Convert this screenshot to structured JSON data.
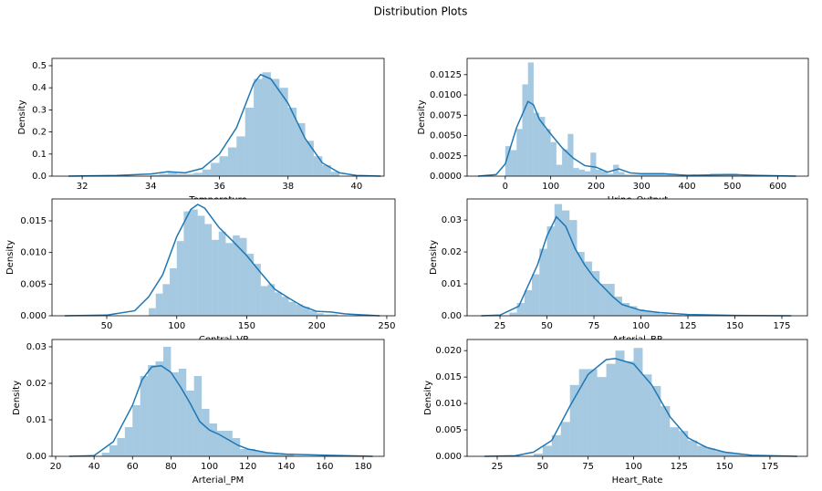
{
  "title": "Distribution Plots",
  "chart_data": [
    {
      "type": "histogram",
      "xlabel": "Temperature",
      "ylabel": "Density",
      "color": "#1f77b4",
      "bar_alpha": 0.4,
      "xlim": [
        31.12,
        40.8
      ],
      "ylim": [
        0,
        0.533
      ],
      "xticks": [
        32,
        34,
        36,
        38,
        40
      ],
      "yticks": [
        {
          "value": 0,
          "label": "0.0"
        },
        0.1,
        0.2,
        0.3,
        0.4,
        0.5
      ],
      "bins": [
        34,
        34.25,
        34.5,
        34.75,
        35,
        35.25,
        35.5,
        35.75,
        36,
        36.25,
        36.5,
        36.75,
        37,
        37.25,
        37.5,
        37.75,
        38,
        38.25,
        38.5,
        38.75,
        39,
        39.25,
        39.5
      ],
      "values": [
        0.005,
        0.01,
        0.015,
        0.01,
        0.01,
        0.015,
        0.03,
        0.06,
        0.09,
        0.13,
        0.18,
        0.31,
        0.44,
        0.47,
        0.44,
        0.4,
        0.31,
        0.24,
        0.16,
        0.09,
        0.05,
        0.02
      ],
      "kde": {
        "x": [
          31.6,
          32,
          33,
          34,
          34.5,
          35,
          35.5,
          36,
          36.5,
          37,
          37.2,
          37.5,
          38,
          38.5,
          39,
          39.5,
          40,
          40.7
        ],
        "y": [
          0,
          0.001,
          0.003,
          0.01,
          0.02,
          0.015,
          0.035,
          0.1,
          0.22,
          0.42,
          0.46,
          0.44,
          0.33,
          0.17,
          0.06,
          0.015,
          0.003,
          0
        ]
      }
    },
    {
      "type": "histogram",
      "xlabel": "Urine_Output",
      "ylabel": "Density",
      "color": "#1f77b4",
      "bar_alpha": 0.4,
      "xlim": [
        -84,
        667
      ],
      "ylim": [
        0,
        0.0145
      ],
      "xticks": [
        0,
        100,
        200,
        300,
        400,
        500,
        600
      ],
      "yticks": [
        {
          "value": 0,
          "label": "0.0000"
        },
        0.0025,
        {
          "value": 0.005,
          "label": "0.0050"
        },
        0.0075,
        {
          "value": 0.01,
          "label": "0.0100"
        },
        0.0125
      ],
      "bins": [
        0,
        12.5,
        25,
        37.5,
        50,
        62.5,
        75,
        87.5,
        100,
        112.5,
        125,
        137.5,
        150,
        162.5,
        175,
        187.5,
        200,
        212.5,
        225,
        237.5,
        250,
        262.5,
        300,
        350,
        400,
        450,
        512.5
      ],
      "values": [
        0.0037,
        0.0032,
        0.0058,
        0.0113,
        0.014,
        0.0078,
        0.0073,
        0.0058,
        0.0042,
        0.0014,
        0.0033,
        0.0052,
        0.001,
        0.0008,
        0.0006,
        0.0029,
        0.0008,
        0.0006,
        0.0003,
        0.0014,
        0.0005,
        0.0002,
        0.0004,
        0.0002,
        0.0001,
        0.0003
      ],
      "kde": {
        "x": [
          -60,
          -20,
          0,
          25,
          50,
          62,
          75,
          100,
          125,
          150,
          175,
          200,
          225,
          250,
          275,
          300,
          350,
          400,
          500,
          550,
          640
        ],
        "y": [
          0,
          0.0002,
          0.0015,
          0.006,
          0.0092,
          0.0088,
          0.007,
          0.0052,
          0.0035,
          0.0022,
          0.0013,
          0.0011,
          0.0005,
          0.0009,
          0.0004,
          0.0003,
          0.0003,
          0.0001,
          0.0002,
          0.0001,
          0
        ]
      }
    },
    {
      "type": "histogram",
      "xlabel": "Central_VP",
      "ylabel": "Density",
      "color": "#1f77b4",
      "bar_alpha": 0.4,
      "xlim": [
        10.9,
        255.9
      ],
      "ylim": [
        0,
        0.01846
      ],
      "xticks": [
        50,
        100,
        150,
        200,
        250
      ],
      "yticks": [
        {
          "value": 0,
          "label": "0.000"
        },
        0.005,
        {
          "value": 0.01,
          "label": "0.010"
        },
        0.015
      ],
      "bins": [
        80,
        85,
        90,
        95,
        100,
        105,
        110,
        115,
        120,
        125,
        130,
        135,
        140,
        145,
        150,
        155,
        160,
        165,
        170,
        175,
        180,
        185,
        190,
        195,
        200,
        205,
        210,
        215
      ],
      "values": [
        0.0012,
        0.0035,
        0.005,
        0.0075,
        0.0118,
        0.0165,
        0.0168,
        0.0158,
        0.0145,
        0.012,
        0.0133,
        0.0115,
        0.0127,
        0.0123,
        0.0098,
        0.0082,
        0.0047,
        0.005,
        0.0037,
        0.003,
        0.0022,
        0.0018,
        0.0014,
        0.0008,
        0.0004,
        0.0002,
        0.0002
      ],
      "kde": {
        "x": [
          20,
          50,
          70,
          80,
          90,
          100,
          110,
          115,
          120,
          130,
          140,
          150,
          160,
          170,
          180,
          190,
          200,
          210,
          220,
          245
        ],
        "y": [
          0,
          0.0001,
          0.0008,
          0.003,
          0.0065,
          0.0125,
          0.0168,
          0.0176,
          0.017,
          0.014,
          0.0118,
          0.0095,
          0.0068,
          0.0042,
          0.0028,
          0.0015,
          0.0007,
          0.0006,
          0.0003,
          0
        ]
      }
    },
    {
      "type": "histogram",
      "xlabel": "Arterial_BP",
      "ylabel": "Density",
      "color": "#1f77b4",
      "bar_alpha": 0.4,
      "xlim": [
        7.5,
        188.6
      ],
      "ylim": [
        0,
        0.0366
      ],
      "xticks": [
        25,
        50,
        75,
        100,
        125,
        150,
        175
      ],
      "yticks": [
        {
          "value": 0,
          "label": "0.00"
        },
        0.01,
        0.02,
        0.03
      ],
      "bins": [
        30,
        34,
        38,
        42,
        46,
        50,
        54,
        58,
        62,
        66,
        70,
        74,
        78,
        82,
        86,
        90,
        94,
        98,
        102,
        106,
        110,
        114,
        118,
        122,
        126
      ],
      "values": [
        0.001,
        0.004,
        0.008,
        0.013,
        0.021,
        0.028,
        0.035,
        0.033,
        0.03,
        0.02,
        0.017,
        0.014,
        0.01,
        0.01,
        0.006,
        0.004,
        0.003,
        0.002,
        0.0015,
        0.001,
        0.0006,
        0.0004,
        0.0003,
        0.0002
      ],
      "kde": {
        "x": [
          15,
          25,
          35,
          45,
          50,
          55,
          60,
          65,
          70,
          75,
          80,
          85,
          90,
          100,
          110,
          125,
          150,
          180
        ],
        "y": [
          0,
          0.0002,
          0.003,
          0.016,
          0.025,
          0.031,
          0.028,
          0.021,
          0.016,
          0.012,
          0.009,
          0.006,
          0.0035,
          0.0017,
          0.001,
          0.0004,
          0.0001,
          0
        ]
      }
    },
    {
      "type": "histogram",
      "xlabel": "Arterial_PM",
      "ylabel": "Density",
      "color": "#1f77b4",
      "bar_alpha": 0.4,
      "xlim": [
        18.1,
        190.9
      ],
      "ylim": [
        0,
        0.032
      ],
      "xticks": [
        20,
        40,
        60,
        80,
        100,
        120,
        140,
        160,
        180
      ],
      "yticks": [
        {
          "value": 0,
          "label": "0.00"
        },
        0.01,
        0.02,
        0.03
      ],
      "bins": [
        44,
        48,
        52,
        56,
        60,
        64,
        68,
        72,
        76,
        80,
        84,
        88,
        92,
        96,
        100,
        104,
        108,
        112,
        116,
        120,
        124,
        128,
        132,
        136,
        140,
        144
      ],
      "values": [
        0.001,
        0.003,
        0.005,
        0.008,
        0.014,
        0.022,
        0.025,
        0.026,
        0.03,
        0.023,
        0.024,
        0.018,
        0.022,
        0.013,
        0.009,
        0.007,
        0.007,
        0.005,
        0.002,
        0.002,
        0.0015,
        0.001,
        0.0007,
        0.0005,
        0.0004
      ],
      "kde": {
        "x": [
          27,
          40,
          50,
          60,
          65,
          70,
          75,
          80,
          85,
          90,
          95,
          100,
          105,
          110,
          115,
          120,
          130,
          140,
          160,
          185
        ],
        "y": [
          0,
          0.0002,
          0.004,
          0.014,
          0.021,
          0.0245,
          0.0248,
          0.023,
          0.019,
          0.0145,
          0.0095,
          0.0072,
          0.006,
          0.0045,
          0.003,
          0.002,
          0.001,
          0.0006,
          0.0003,
          0
        ]
      }
    },
    {
      "type": "histogram",
      "xlabel": "Heart_Rate",
      "ylabel": "Density",
      "color": "#1f77b4",
      "bar_alpha": 0.4,
      "xlim": [
        8.45,
        195.6
      ],
      "ylim": [
        0,
        0.0221
      ],
      "xticks": [
        25,
        50,
        75,
        100,
        125,
        150,
        175
      ],
      "yticks": [
        {
          "value": 0,
          "label": "0.000"
        },
        0.005,
        {
          "value": 0.01,
          "label": "0.010"
        },
        0.015,
        {
          "value": 0.02,
          "label": "0.020"
        }
      ],
      "bins": [
        45,
        50,
        55,
        60,
        65,
        70,
        75,
        80,
        85,
        90,
        95,
        100,
        105,
        110,
        115,
        120,
        125,
        130,
        135,
        140,
        145,
        150,
        155,
        160,
        165
      ],
      "values": [
        0.0005,
        0.002,
        0.004,
        0.0065,
        0.0135,
        0.0165,
        0.0165,
        0.015,
        0.0175,
        0.02,
        0.018,
        0.0205,
        0.0155,
        0.0133,
        0.0095,
        0.0055,
        0.0048,
        0.003,
        0.002,
        0.0015,
        0.001,
        0.0007,
        0.0004,
        0.0002
      ],
      "kde": {
        "x": [
          18,
          35,
          45,
          55,
          65,
          75,
          85,
          90,
          100,
          110,
          120,
          130,
          140,
          150,
          165,
          190
        ],
        "y": [
          0,
          0.0001,
          0.0008,
          0.003,
          0.0095,
          0.0155,
          0.0183,
          0.0185,
          0.0175,
          0.0135,
          0.0075,
          0.0035,
          0.0017,
          0.0008,
          0.0002,
          0
        ]
      }
    }
  ]
}
